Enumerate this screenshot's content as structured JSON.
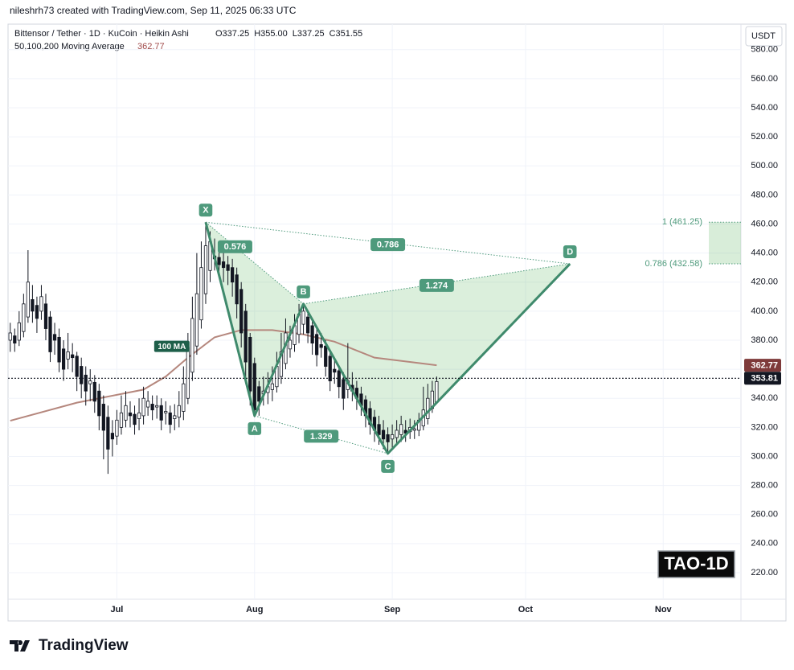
{
  "header": {
    "attribution": "nileshrh73 created with TradingView.com, Sep 11, 2025 06:33 UTC",
    "brand": "TradingView"
  },
  "chart_data": {
    "type": "candlestick",
    "title": "Bittensor / Tether · 1D · KuCoin · Heikin Ashi",
    "legend_ohlc": [
      "O337.25",
      "H355.00",
      "L337.25",
      "C351.55"
    ],
    "indicator": "50,100,200 Moving Average",
    "currency": "USDT",
    "badge": "TAO-1D",
    "xlim": [
      -0.5,
      164.5
    ],
    "xticks": [
      {
        "value": 24,
        "label": "Jul"
      },
      {
        "value": 55,
        "label": "Aug"
      },
      {
        "value": 86,
        "label": "Sep"
      },
      {
        "value": 116,
        "label": "Oct"
      },
      {
        "value": 147,
        "label": "Nov"
      }
    ],
    "ylim": [
      201.7,
      597.6
    ],
    "yticks": [
      {
        "value": 220,
        "label": "220.00"
      },
      {
        "value": 240,
        "label": "240.00"
      },
      {
        "value": 260,
        "label": "260.00"
      },
      {
        "value": 280,
        "label": "280.00"
      },
      {
        "value": 300,
        "label": "300.00"
      },
      {
        "value": 320,
        "label": "320.00"
      },
      {
        "value": 340,
        "label": "340.00"
      },
      {
        "value": 360,
        "label": "360.00"
      },
      {
        "value": 380,
        "label": "380.00"
      },
      {
        "value": 400,
        "label": "400.00"
      },
      {
        "value": 420,
        "label": "420.00"
      },
      {
        "value": 440,
        "label": "440.00"
      },
      {
        "value": 460,
        "label": "460.00"
      },
      {
        "value": 480,
        "label": "480.00"
      },
      {
        "value": 500,
        "label": "500.00"
      },
      {
        "value": 520,
        "label": "520.00"
      },
      {
        "value": 540,
        "label": "540.00"
      },
      {
        "value": 560,
        "label": "560.00"
      },
      {
        "value": 580,
        "label": "580.00"
      }
    ],
    "grid": true,
    "up_color": "#ffffff",
    "down_color": "#131722",
    "ohlc": [
      [
        380,
        392,
        372,
        385
      ],
      [
        383,
        388,
        372,
        378
      ],
      [
        380,
        400,
        376,
        392
      ],
      [
        386,
        412,
        382,
        405
      ],
      [
        396,
        442,
        392,
        420
      ],
      [
        408,
        418,
        392,
        400
      ],
      [
        404,
        410,
        385,
        395
      ],
      [
        400,
        418,
        394,
        410
      ],
      [
        405,
        412,
        380,
        388
      ],
      [
        396,
        400,
        365,
        372
      ],
      [
        384,
        392,
        370,
        380
      ],
      [
        382,
        388,
        358,
        365
      ],
      [
        374,
        380,
        352,
        360
      ],
      [
        367,
        385,
        360,
        372
      ],
      [
        370,
        378,
        358,
        368
      ],
      [
        369,
        372,
        345,
        355
      ],
      [
        362,
        368,
        340,
        350
      ],
      [
        356,
        362,
        335,
        345
      ],
      [
        350,
        360,
        338,
        352
      ],
      [
        351,
        356,
        330,
        338
      ],
      [
        345,
        350,
        318,
        328
      ],
      [
        336,
        342,
        298,
        318
      ],
      [
        327,
        335,
        288,
        305
      ],
      [
        316,
        325,
        300,
        312
      ],
      [
        314,
        332,
        308,
        325
      ],
      [
        320,
        342,
        315,
        330
      ],
      [
        325,
        345,
        320,
        335
      ],
      [
        330,
        338,
        320,
        328
      ],
      [
        329,
        335,
        315,
        322
      ],
      [
        326,
        340,
        318,
        330
      ],
      [
        328,
        348,
        322,
        340
      ],
      [
        334,
        345,
        328,
        338
      ],
      [
        336,
        342,
        325,
        332
      ],
      [
        334,
        342,
        326,
        335
      ],
      [
        335,
        340,
        318,
        325
      ],
      [
        330,
        338,
        322,
        331
      ],
      [
        330,
        335,
        316,
        322
      ],
      [
        326,
        336,
        318,
        328
      ],
      [
        327,
        345,
        320,
        335
      ],
      [
        331,
        362,
        325,
        350
      ],
      [
        340,
        385,
        336,
        375
      ],
      [
        358,
        410,
        352,
        395
      ],
      [
        376,
        440,
        370,
        412
      ],
      [
        394,
        448,
        388,
        430
      ],
      [
        412,
        461.25,
        405,
        445
      ],
      [
        428,
        455,
        420,
        448
      ],
      [
        438,
        450,
        428,
        436
      ],
      [
        437,
        446,
        425,
        432
      ],
      [
        434,
        442,
        420,
        430
      ],
      [
        432,
        438,
        418,
        428
      ],
      [
        430,
        436,
        410,
        420
      ],
      [
        425,
        430,
        395,
        405
      ],
      [
        415,
        420,
        375,
        385
      ],
      [
        400,
        405,
        350,
        365
      ],
      [
        382,
        385,
        335,
        345
      ],
      [
        364,
        368,
        327,
        332
      ],
      [
        348,
        352,
        328,
        338
      ],
      [
        343,
        355,
        335,
        345
      ],
      [
        344,
        358,
        336,
        348
      ],
      [
        346,
        362,
        338,
        350
      ],
      [
        348,
        372,
        344,
        362
      ],
      [
        355,
        385,
        350,
        372
      ],
      [
        364,
        395,
        360,
        385
      ],
      [
        374,
        390,
        368,
        380
      ],
      [
        377,
        398,
        372,
        390
      ],
      [
        384,
        405,
        378,
        398
      ],
      [
        391,
        405,
        384,
        400
      ],
      [
        396,
        400,
        378,
        385
      ],
      [
        390,
        395,
        370,
        378
      ],
      [
        384,
        388,
        362,
        370
      ],
      [
        377,
        385,
        368,
        375
      ],
      [
        376,
        380,
        355,
        362
      ],
      [
        369,
        372,
        345,
        352
      ],
      [
        360,
        368,
        350,
        358
      ],
      [
        359,
        362,
        340,
        348
      ],
      [
        353,
        358,
        332,
        340
      ],
      [
        346,
        378,
        340,
        352
      ],
      [
        349,
        358,
        338,
        345
      ],
      [
        347,
        352,
        332,
        340
      ],
      [
        343,
        348,
        328,
        335
      ],
      [
        339,
        342,
        320,
        328
      ],
      [
        333,
        338,
        315,
        322
      ],
      [
        327,
        332,
        310,
        318
      ],
      [
        322,
        328,
        308,
        315
      ],
      [
        318,
        325,
        305,
        312
      ],
      [
        315,
        320,
        302,
        310
      ],
      [
        312,
        322,
        305,
        315
      ],
      [
        313,
        325,
        308,
        318
      ],
      [
        315,
        328,
        310,
        322
      ],
      [
        318,
        325,
        310,
        316
      ],
      [
        317,
        326,
        312,
        320
      ],
      [
        318,
        325,
        312,
        319
      ],
      [
        318,
        330,
        314,
        325
      ],
      [
        321,
        348,
        318,
        332
      ],
      [
        326,
        350,
        322,
        340
      ],
      [
        333,
        352,
        330,
        345
      ],
      [
        337.25,
        355,
        337.25,
        351.55
      ]
    ],
    "series": [
      {
        "name": "100 MA",
        "color": "#b5877d",
        "x": [
          0,
          15,
          30,
          35,
          40,
          46,
          52,
          59,
          66,
          73,
          82,
          96
        ],
        "values": [
          324.6,
          337,
          346,
          355,
          368,
          382,
          387,
          387,
          384,
          379,
          368,
          362.77
        ]
      }
    ],
    "last_price": 353.81,
    "pattern": [
      {
        "label": "X",
        "x": 44,
        "y": 461.25
      },
      {
        "label": "A",
        "x": 55,
        "y": 328
      },
      {
        "label": "B",
        "x": 66,
        "y": 405
      },
      {
        "label": "C",
        "x": 85,
        "y": 302
      },
      {
        "label": "D",
        "x": 126,
        "y": 432.58
      }
    ],
    "ratios": [
      0.576,
      0.786,
      1.274,
      1.329
    ],
    "fib_levels": [
      {
        "value": 461.25,
        "label": "1 (461.25)"
      },
      {
        "value": 432.58,
        "label": "0.786 (432.58)"
      }
    ]
  }
}
